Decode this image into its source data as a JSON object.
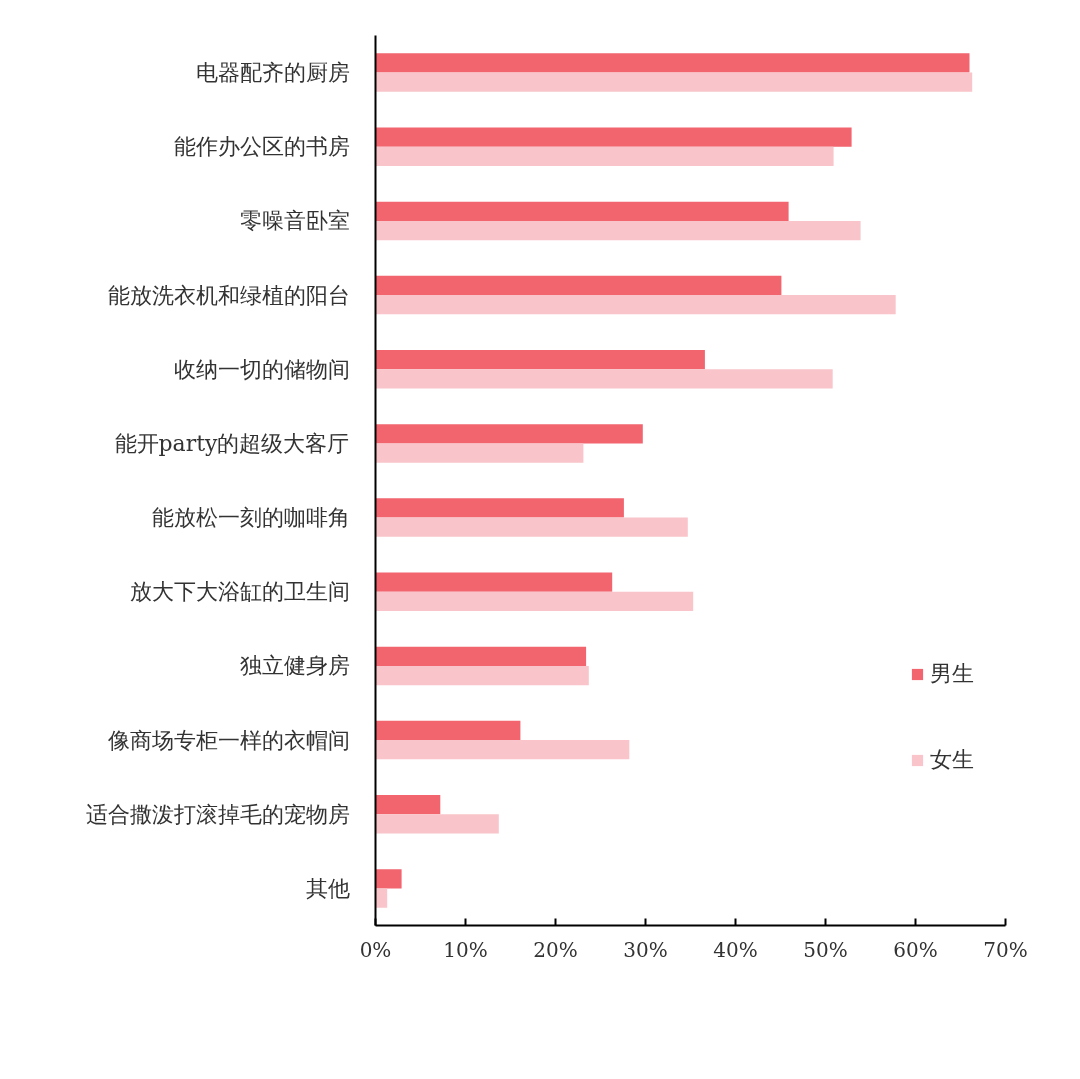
{
  "chart_data": {
    "type": "bar",
    "orientation": "horizontal",
    "categories": [
      "电器配齐的厨房",
      "能作办公区的书房",
      "零噪音卧室",
      "能放洗衣机和绿植的阳台",
      "收纳一切的储物间",
      "能开party的超级大客厅",
      "能放松一刻的咖啡角",
      "放大下大浴缸的卫生间",
      "独立健身房",
      "像商场专柜一样的衣帽间",
      "适合撒泼打滚掉毛的宠物房",
      "其他"
    ],
    "series": [
      {
        "name": "男生",
        "color": "#f2646e",
        "values": [
          66.0,
          52.9,
          45.9,
          45.1,
          36.6,
          29.7,
          27.6,
          26.3,
          23.4,
          16.1,
          7.2,
          2.9
        ]
      },
      {
        "name": "女生",
        "color": "#f9c4ca",
        "values": [
          66.3,
          50.9,
          53.9,
          57.8,
          50.8,
          23.1,
          34.7,
          35.3,
          23.7,
          28.2,
          13.7,
          1.3
        ]
      }
    ],
    "xlim": [
      0,
      70
    ],
    "xticks": [
      {
        "value": 0,
        "label": "0%"
      },
      {
        "value": 10,
        "label": "10%"
      },
      {
        "value": 20,
        "label": "20%"
      },
      {
        "value": 30,
        "label": "30%"
      },
      {
        "value": 40,
        "label": "40%"
      },
      {
        "value": 50,
        "label": "50%"
      },
      {
        "value": 60,
        "label": "60%"
      },
      {
        "value": 70,
        "label": "70%"
      }
    ],
    "legend": "right"
  }
}
